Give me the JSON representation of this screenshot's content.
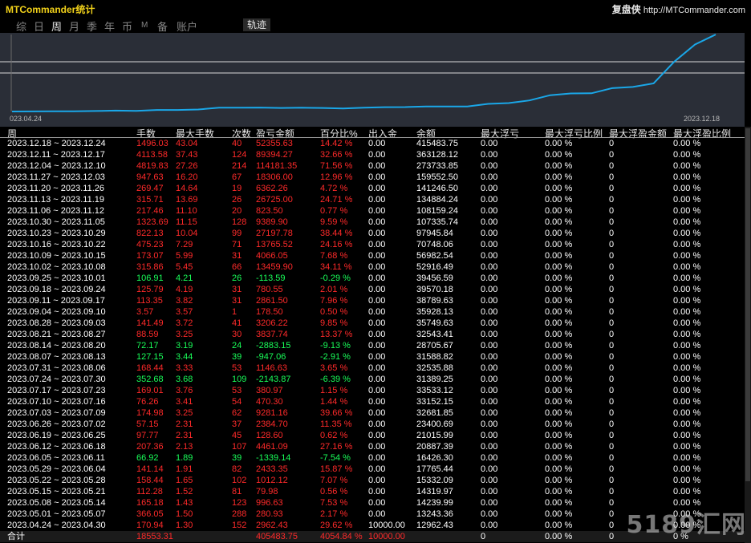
{
  "app": {
    "title": "MTCommander统计",
    "brand_cn": "复盘侠",
    "brand_url": "http://MTCommander.com"
  },
  "tabs": [
    {
      "label": "综",
      "active": false
    },
    {
      "label": "日",
      "active": false
    },
    {
      "label": "周",
      "active": true
    },
    {
      "label": "月",
      "active": false
    },
    {
      "label": "季",
      "active": false
    },
    {
      "label": "年",
      "active": false
    },
    {
      "label": "币",
      "active": false
    },
    {
      "label": "M",
      "active": false
    },
    {
      "label": "备",
      "active": false
    },
    {
      "label": "账户",
      "active": false
    }
  ],
  "trace_button": "轨迹",
  "chart_data": {
    "type": "line",
    "x_start": "023.04.24",
    "x_end": "2023.12.18",
    "x": [
      "2023.04.24",
      "2023.05.01",
      "2023.05.08",
      "2023.05.15",
      "2023.05.22",
      "2023.05.29",
      "2023.06.05",
      "2023.06.12",
      "2023.06.19",
      "2023.06.26",
      "2023.07.03",
      "2023.07.10",
      "2023.07.17",
      "2023.07.24",
      "2023.07.31",
      "2023.08.07",
      "2023.08.14",
      "2023.08.21",
      "2023.08.28",
      "2023.09.04",
      "2023.09.11",
      "2023.09.18",
      "2023.09.25",
      "2023.10.02",
      "2023.10.09",
      "2023.10.16",
      "2023.10.23",
      "2023.10.30",
      "2023.11.06",
      "2023.11.13",
      "2023.11.20",
      "2023.11.27",
      "2023.12.04",
      "2023.12.11",
      "2023.12.18"
    ],
    "values": [
      12962.43,
      13243.36,
      14239.99,
      14319.97,
      15332.09,
      17765.44,
      16426.3,
      20887.39,
      21015.99,
      23400.69,
      32681.85,
      33152.15,
      33533.12,
      31389.25,
      32535.88,
      31588.82,
      28705.67,
      32543.41,
      35749.63,
      35928.13,
      38789.63,
      39570.18,
      39456.59,
      52916.49,
      56982.54,
      70748.06,
      97945.84,
      107335.74,
      108159.24,
      134884.24,
      141246.5,
      159552.5,
      273733.85,
      363128.12,
      415483.75
    ],
    "color": "#1aa7e8",
    "background": "#2a2e37"
  },
  "columns": [
    "周",
    "手数",
    "最大手数",
    "次数",
    "盈亏金额",
    "百分比%",
    "出入金",
    "余额",
    "最大浮亏",
    "最大浮亏比例",
    "最大浮盈金额",
    "最大浮盈比例"
  ],
  "rows": [
    {
      "week": "2023.12.18 ~ 2023.12.24",
      "lots": "1496.03",
      "max_lots": "43.04",
      "count": "40",
      "pnl": "52355.63",
      "pct": "14.42 %",
      "flow": "0.00",
      "balance": "415483.75",
      "max_loss": "0.00",
      "max_loss_pct": "0.00 %",
      "max_gain": "0",
      "max_gain_pct": "0.00 %",
      "positive": true
    },
    {
      "week": "2023.12.11 ~ 2023.12.17",
      "lots": "4113.58",
      "max_lots": "37.43",
      "count": "124",
      "pnl": "89394.27",
      "pct": "32.66 %",
      "flow": "0.00",
      "balance": "363128.12",
      "max_loss": "0.00",
      "max_loss_pct": "0.00 %",
      "max_gain": "0",
      "max_gain_pct": "0.00 %",
      "positive": true
    },
    {
      "week": "2023.12.04 ~ 2023.12.10",
      "lots": "4819.83",
      "max_lots": "27.26",
      "count": "214",
      "pnl": "114181.35",
      "pct": "71.56 %",
      "flow": "0.00",
      "balance": "273733.85",
      "max_loss": "0.00",
      "max_loss_pct": "0.00 %",
      "max_gain": "0",
      "max_gain_pct": "0.00 %",
      "positive": true
    },
    {
      "week": "2023.11.27 ~ 2023.12.03",
      "lots": "947.63",
      "max_lots": "16.20",
      "count": "67",
      "pnl": "18306.00",
      "pct": "12.96 %",
      "flow": "0.00",
      "balance": "159552.50",
      "max_loss": "0.00",
      "max_loss_pct": "0.00 %",
      "max_gain": "0",
      "max_gain_pct": "0.00 %",
      "positive": true
    },
    {
      "week": "2023.11.20 ~ 2023.11.26",
      "lots": "269.47",
      "max_lots": "14.64",
      "count": "19",
      "pnl": "6362.26",
      "pct": "4.72 %",
      "flow": "0.00",
      "balance": "141246.50",
      "max_loss": "0.00",
      "max_loss_pct": "0.00 %",
      "max_gain": "0",
      "max_gain_pct": "0.00 %",
      "positive": true
    },
    {
      "week": "2023.11.13 ~ 2023.11.19",
      "lots": "315.71",
      "max_lots": "13.69",
      "count": "26",
      "pnl": "26725.00",
      "pct": "24.71 %",
      "flow": "0.00",
      "balance": "134884.24",
      "max_loss": "0.00",
      "max_loss_pct": "0.00 %",
      "max_gain": "0",
      "max_gain_pct": "0.00 %",
      "positive": true
    },
    {
      "week": "2023.11.06 ~ 2023.11.12",
      "lots": "217.46",
      "max_lots": "11.10",
      "count": "20",
      "pnl": "823.50",
      "pct": "0.77 %",
      "flow": "0.00",
      "balance": "108159.24",
      "max_loss": "0.00",
      "max_loss_pct": "0.00 %",
      "max_gain": "0",
      "max_gain_pct": "0.00 %",
      "positive": true
    },
    {
      "week": "2023.10.30 ~ 2023.11.05",
      "lots": "1323.69",
      "max_lots": "11.15",
      "count": "128",
      "pnl": "9389.90",
      "pct": "9.59 %",
      "flow": "0.00",
      "balance": "107335.74",
      "max_loss": "0.00",
      "max_loss_pct": "0.00 %",
      "max_gain": "0",
      "max_gain_pct": "0.00 %",
      "positive": true
    },
    {
      "week": "2023.10.23 ~ 2023.10.29",
      "lots": "822.13",
      "max_lots": "10.04",
      "count": "99",
      "pnl": "27197.78",
      "pct": "38.44 %",
      "flow": "0.00",
      "balance": "97945.84",
      "max_loss": "0.00",
      "max_loss_pct": "0.00 %",
      "max_gain": "0",
      "max_gain_pct": "0.00 %",
      "positive": true
    },
    {
      "week": "2023.10.16 ~ 2023.10.22",
      "lots": "475.23",
      "max_lots": "7.29",
      "count": "71",
      "pnl": "13765.52",
      "pct": "24.16 %",
      "flow": "0.00",
      "balance": "70748.06",
      "max_loss": "0.00",
      "max_loss_pct": "0.00 %",
      "max_gain": "0",
      "max_gain_pct": "0.00 %",
      "positive": true
    },
    {
      "week": "2023.10.09 ~ 2023.10.15",
      "lots": "173.07",
      "max_lots": "5.99",
      "count": "31",
      "pnl": "4066.05",
      "pct": "7.68 %",
      "flow": "0.00",
      "balance": "56982.54",
      "max_loss": "0.00",
      "max_loss_pct": "0.00 %",
      "max_gain": "0",
      "max_gain_pct": "0.00 %",
      "positive": true
    },
    {
      "week": "2023.10.02 ~ 2023.10.08",
      "lots": "315.86",
      "max_lots": "5.45",
      "count": "66",
      "pnl": "13459.90",
      "pct": "34.11 %",
      "flow": "0.00",
      "balance": "52916.49",
      "max_loss": "0.00",
      "max_loss_pct": "0.00 %",
      "max_gain": "0",
      "max_gain_pct": "0.00 %",
      "positive": true
    },
    {
      "week": "2023.09.25 ~ 2023.10.01",
      "lots": "106.91",
      "max_lots": "4.21",
      "count": "26",
      "pnl": "-113.59",
      "pct": "-0.29 %",
      "flow": "0.00",
      "balance": "39456.59",
      "max_loss": "0.00",
      "max_loss_pct": "0.00 %",
      "max_gain": "0",
      "max_gain_pct": "0.00 %",
      "positive": false
    },
    {
      "week": "2023.09.18 ~ 2023.09.24",
      "lots": "125.79",
      "max_lots": "4.19",
      "count": "31",
      "pnl": "780.55",
      "pct": "2.01 %",
      "flow": "0.00",
      "balance": "39570.18",
      "max_loss": "0.00",
      "max_loss_pct": "0.00 %",
      "max_gain": "0",
      "max_gain_pct": "0.00 %",
      "positive": true
    },
    {
      "week": "2023.09.11 ~ 2023.09.17",
      "lots": "113.35",
      "max_lots": "3.82",
      "count": "31",
      "pnl": "2861.50",
      "pct": "7.96 %",
      "flow": "0.00",
      "balance": "38789.63",
      "max_loss": "0.00",
      "max_loss_pct": "0.00 %",
      "max_gain": "0",
      "max_gain_pct": "0.00 %",
      "positive": true
    },
    {
      "week": "2023.09.04 ~ 2023.09.10",
      "lots": "3.57",
      "max_lots": "3.57",
      "count": "1",
      "pnl": "178.50",
      "pct": "0.50 %",
      "flow": "0.00",
      "balance": "35928.13",
      "max_loss": "0.00",
      "max_loss_pct": "0.00 %",
      "max_gain": "0",
      "max_gain_pct": "0.00 %",
      "positive": true
    },
    {
      "week": "2023.08.28 ~ 2023.09.03",
      "lots": "141.49",
      "max_lots": "3.72",
      "count": "41",
      "pnl": "3206.22",
      "pct": "9.85 %",
      "flow": "0.00",
      "balance": "35749.63",
      "max_loss": "0.00",
      "max_loss_pct": "0.00 %",
      "max_gain": "0",
      "max_gain_pct": "0.00 %",
      "positive": true
    },
    {
      "week": "2023.08.21 ~ 2023.08.27",
      "lots": "88.59",
      "max_lots": "3.25",
      "count": "30",
      "pnl": "3837.74",
      "pct": "13.37 %",
      "flow": "0.00",
      "balance": "32543.41",
      "max_loss": "0.00",
      "max_loss_pct": "0.00 %",
      "max_gain": "0",
      "max_gain_pct": "0.00 %",
      "positive": true
    },
    {
      "week": "2023.08.14 ~ 2023.08.20",
      "lots": "72.17",
      "max_lots": "3.19",
      "count": "24",
      "pnl": "-2883.15",
      "pct": "-9.13 %",
      "flow": "0.00",
      "balance": "28705.67",
      "max_loss": "0.00",
      "max_loss_pct": "0.00 %",
      "max_gain": "0",
      "max_gain_pct": "0.00 %",
      "positive": false
    },
    {
      "week": "2023.08.07 ~ 2023.08.13",
      "lots": "127.15",
      "max_lots": "3.44",
      "count": "39",
      "pnl": "-947.06",
      "pct": "-2.91 %",
      "flow": "0.00",
      "balance": "31588.82",
      "max_loss": "0.00",
      "max_loss_pct": "0.00 %",
      "max_gain": "0",
      "max_gain_pct": "0.00 %",
      "positive": false
    },
    {
      "week": "2023.07.31 ~ 2023.08.06",
      "lots": "168.44",
      "max_lots": "3.33",
      "count": "53",
      "pnl": "1146.63",
      "pct": "3.65 %",
      "flow": "0.00",
      "balance": "32535.88",
      "max_loss": "0.00",
      "max_loss_pct": "0.00 %",
      "max_gain": "0",
      "max_gain_pct": "0.00 %",
      "positive": true
    },
    {
      "week": "2023.07.24 ~ 2023.07.30",
      "lots": "352.68",
      "max_lots": "3.68",
      "count": "109",
      "pnl": "-2143.87",
      "pct": "-6.39 %",
      "flow": "0.00",
      "balance": "31389.25",
      "max_loss": "0.00",
      "max_loss_pct": "0.00 %",
      "max_gain": "0",
      "max_gain_pct": "0.00 %",
      "positive": false
    },
    {
      "week": "2023.07.17 ~ 2023.07.23",
      "lots": "169.01",
      "max_lots": "3.76",
      "count": "53",
      "pnl": "380.97",
      "pct": "1.15 %",
      "flow": "0.00",
      "balance": "33533.12",
      "max_loss": "0.00",
      "max_loss_pct": "0.00 %",
      "max_gain": "0",
      "max_gain_pct": "0.00 %",
      "positive": true
    },
    {
      "week": "2023.07.10 ~ 2023.07.16",
      "lots": "76.26",
      "max_lots": "3.41",
      "count": "54",
      "pnl": "470.30",
      "pct": "1.44 %",
      "flow": "0.00",
      "balance": "33152.15",
      "max_loss": "0.00",
      "max_loss_pct": "0.00 %",
      "max_gain": "0",
      "max_gain_pct": "0.00 %",
      "positive": true
    },
    {
      "week": "2023.07.03 ~ 2023.07.09",
      "lots": "174.98",
      "max_lots": "3.25",
      "count": "62",
      "pnl": "9281.16",
      "pct": "39.66 %",
      "flow": "0.00",
      "balance": "32681.85",
      "max_loss": "0.00",
      "max_loss_pct": "0.00 %",
      "max_gain": "0",
      "max_gain_pct": "0.00 %",
      "positive": true
    },
    {
      "week": "2023.06.26 ~ 2023.07.02",
      "lots": "57.15",
      "max_lots": "2.31",
      "count": "37",
      "pnl": "2384.70",
      "pct": "11.35 %",
      "flow": "0.00",
      "balance": "23400.69",
      "max_loss": "0.00",
      "max_loss_pct": "0.00 %",
      "max_gain": "0",
      "max_gain_pct": "0.00 %",
      "positive": true
    },
    {
      "week": "2023.06.19 ~ 2023.06.25",
      "lots": "97.77",
      "max_lots": "2.31",
      "count": "45",
      "pnl": "128.60",
      "pct": "0.62 %",
      "flow": "0.00",
      "balance": "21015.99",
      "max_loss": "0.00",
      "max_loss_pct": "0.00 %",
      "max_gain": "0",
      "max_gain_pct": "0.00 %",
      "positive": true
    },
    {
      "week": "2023.06.12 ~ 2023.06.18",
      "lots": "207.36",
      "max_lots": "2.13",
      "count": "107",
      "pnl": "4461.09",
      "pct": "27.16 %",
      "flow": "0.00",
      "balance": "20887.39",
      "max_loss": "0.00",
      "max_loss_pct": "0.00 %",
      "max_gain": "0",
      "max_gain_pct": "0.00 %",
      "positive": true
    },
    {
      "week": "2023.06.05 ~ 2023.06.11",
      "lots": "66.92",
      "max_lots": "1.89",
      "count": "39",
      "pnl": "-1339.14",
      "pct": "-7.54 %",
      "flow": "0.00",
      "balance": "16426.30",
      "max_loss": "0.00",
      "max_loss_pct": "0.00 %",
      "max_gain": "0",
      "max_gain_pct": "0.00 %",
      "positive": false
    },
    {
      "week": "2023.05.29 ~ 2023.06.04",
      "lots": "141.14",
      "max_lots": "1.91",
      "count": "82",
      "pnl": "2433.35",
      "pct": "15.87 %",
      "flow": "0.00",
      "balance": "17765.44",
      "max_loss": "0.00",
      "max_loss_pct": "0.00 %",
      "max_gain": "0",
      "max_gain_pct": "0.00 %",
      "positive": true
    },
    {
      "week": "2023.05.22 ~ 2023.05.28",
      "lots": "158.44",
      "max_lots": "1.65",
      "count": "102",
      "pnl": "1012.12",
      "pct": "7.07 %",
      "flow": "0.00",
      "balance": "15332.09",
      "max_loss": "0.00",
      "max_loss_pct": "0.00 %",
      "max_gain": "0",
      "max_gain_pct": "0.00 %",
      "positive": true
    },
    {
      "week": "2023.05.15 ~ 2023.05.21",
      "lots": "112.28",
      "max_lots": "1.52",
      "count": "81",
      "pnl": "79.98",
      "pct": "0.56 %",
      "flow": "0.00",
      "balance": "14319.97",
      "max_loss": "0.00",
      "max_loss_pct": "0.00 %",
      "max_gain": "0",
      "max_gain_pct": "0.00 %",
      "positive": true
    },
    {
      "week": "2023.05.08 ~ 2023.05.14",
      "lots": "165.18",
      "max_lots": "1.43",
      "count": "123",
      "pnl": "996.63",
      "pct": "7.53 %",
      "flow": "0.00",
      "balance": "14239.99",
      "max_loss": "0.00",
      "max_loss_pct": "0.00 %",
      "max_gain": "0",
      "max_gain_pct": "0.00 %",
      "positive": true
    },
    {
      "week": "2023.05.01 ~ 2023.05.07",
      "lots": "366.05",
      "max_lots": "1.50",
      "count": "288",
      "pnl": "280.93",
      "pct": "2.17 %",
      "flow": "0.00",
      "balance": "13243.36",
      "max_loss": "0.00",
      "max_loss_pct": "0.00 %",
      "max_gain": "0",
      "max_gain_pct": "0.00 %",
      "positive": true
    },
    {
      "week": "2023.04.24 ~ 2023.04.30",
      "lots": "170.94",
      "max_lots": "1.30",
      "count": "152",
      "pnl": "2962.43",
      "pct": "29.62 %",
      "flow": "10000.00",
      "balance": "12962.43",
      "max_loss": "0.00",
      "max_loss_pct": "0.00 %",
      "max_gain": "0",
      "max_gain_pct": "0.00 %",
      "positive": true
    }
  ],
  "total": {
    "label": "合计",
    "lots": "18553.31",
    "pnl": "405483.75",
    "pct": "4054.84 %",
    "flow": "10000.00",
    "max_loss": "0",
    "max_loss_pct": "0.00 %",
    "max_gain": "0",
    "max_gain_pct": "0 %"
  },
  "watermark": "5189汇网",
  "colors": {
    "positive": "#ff2a2a",
    "negative": "#19ff59",
    "title": "#f2d21a",
    "line": "#1aa7e8"
  }
}
